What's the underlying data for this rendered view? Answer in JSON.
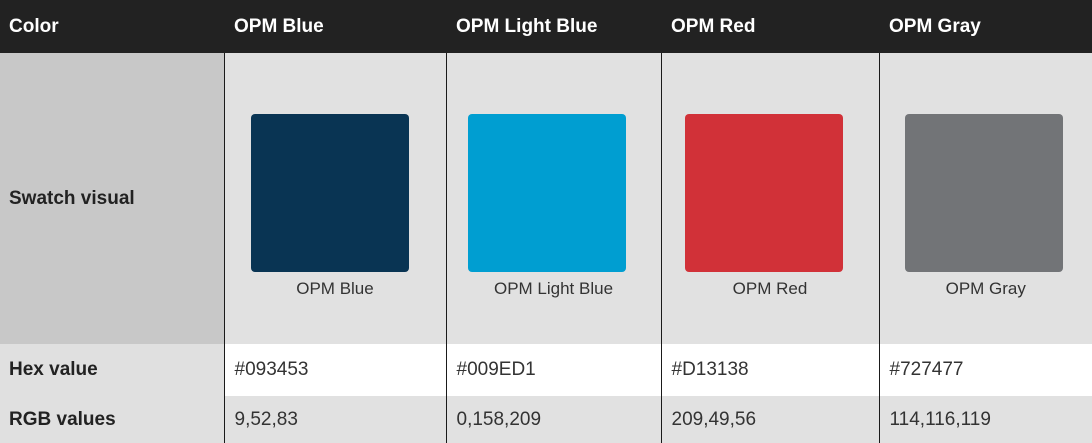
{
  "table": {
    "header": {
      "first": "Color",
      "columns": [
        "OPM Blue",
        "OPM Light Blue",
        "OPM Red",
        "OPM Gray"
      ]
    },
    "rows": {
      "swatch_label": "Swatch visual",
      "hex_label": "Hex value",
      "rgb_label": "RGB values"
    },
    "colors": [
      {
        "name": "OPM Blue",
        "swatch_caption": "OPM Blue",
        "hex": "#093453",
        "rgb": "9,52,83"
      },
      {
        "name": "OPM Light Blue",
        "swatch_caption": "OPM Light Blue",
        "hex": "#009ED1",
        "rgb": "0,158,209"
      },
      {
        "name": "OPM Red",
        "swatch_caption": "OPM Red",
        "hex": "#D13138",
        "rgb": "209,49,56"
      },
      {
        "name": "OPM Gray",
        "swatch_caption": "OPM Gray",
        "hex": "#727477",
        "rgb": "114,116,119"
      }
    ]
  }
}
